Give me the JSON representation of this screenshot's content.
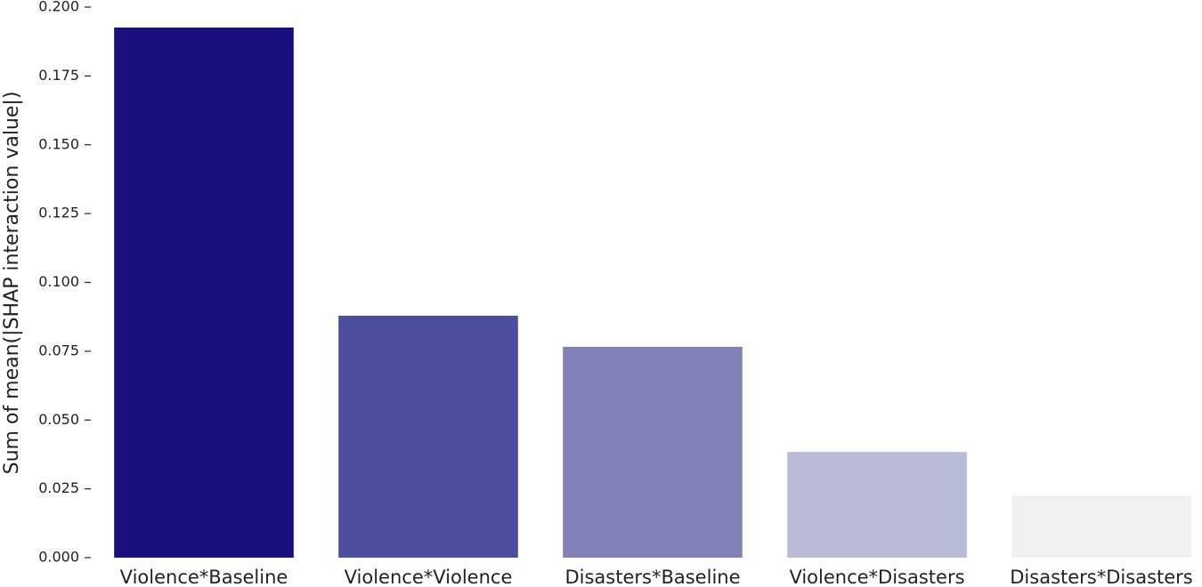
{
  "chart_data": {
    "type": "bar",
    "ylabel": "Sum of mean(|SHAP interaction value|)",
    "categories": [
      "Violence*Baseline",
      "Violence*Violence",
      "Disasters*Baseline",
      "Violence*Disasters",
      "Disasters*Disasters"
    ],
    "values": [
      0.1926,
      0.0879,
      0.0766,
      0.0384,
      0.0226
    ],
    "colors": [
      "#1a0f7e",
      "#4b4d9e",
      "#8382b8",
      "#babbd8",
      "#f0f0f0"
    ],
    "ylim": [
      0,
      0.2
    ],
    "yticks": [
      {
        "value": 0,
        "label": "0.000"
      },
      {
        "value": 0.025,
        "label": "0.025"
      },
      {
        "value": 0.05,
        "label": "0.050"
      },
      {
        "value": 0.075,
        "label": "0.075"
      },
      {
        "value": 0.1,
        "label": "0.100"
      },
      {
        "value": 0.125,
        "label": "0.125"
      },
      {
        "value": 0.15,
        "label": "0.150"
      },
      {
        "value": 0.175,
        "label": "0.175"
      },
      {
        "value": 0.2,
        "label": "0.200"
      }
    ]
  }
}
